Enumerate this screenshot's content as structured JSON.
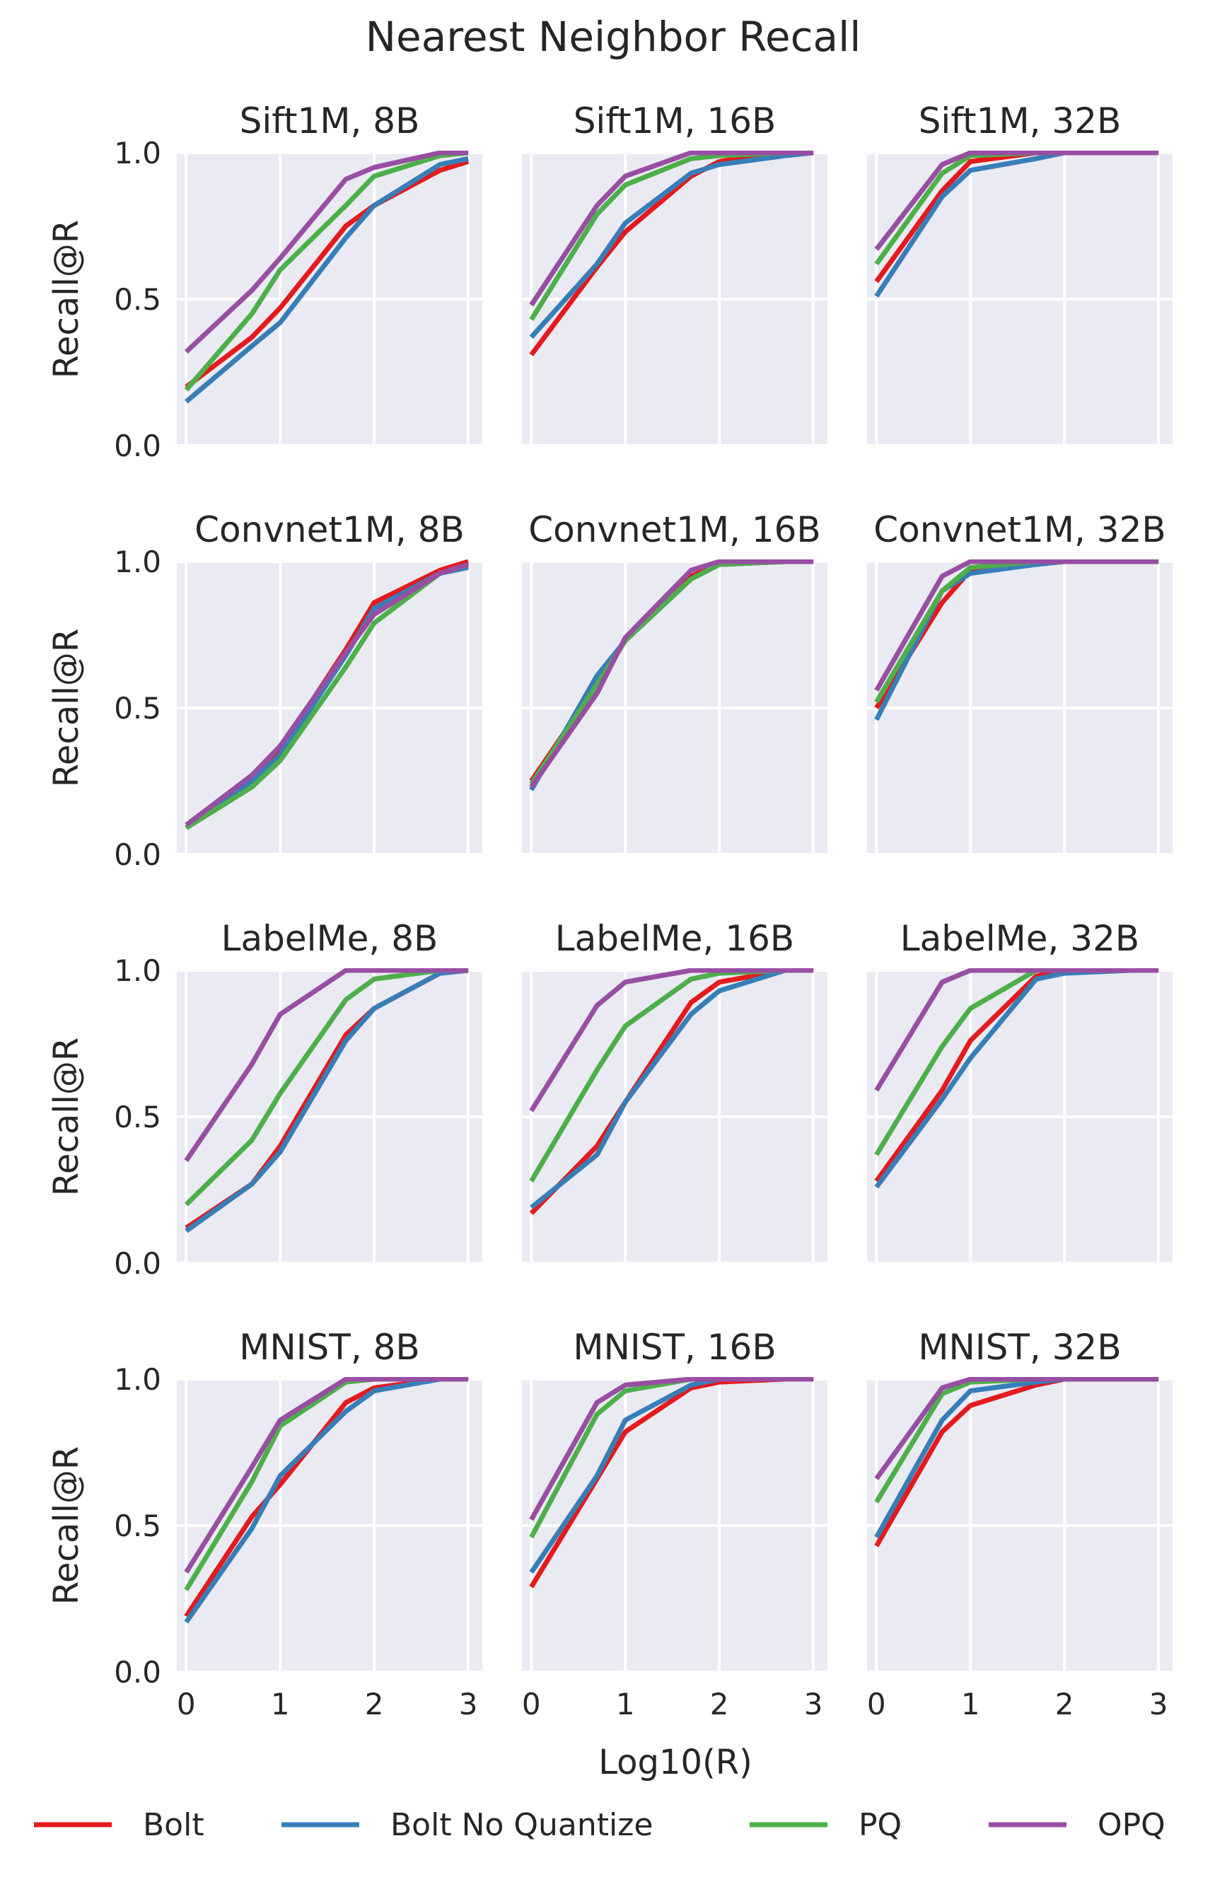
{
  "figure_title": "Nearest Neighbor Recall",
  "colors": {
    "panel_bg": "#eaeaf2",
    "grid": "#ffffff",
    "text": "#262626"
  },
  "chart_data": {
    "type": "line",
    "title": "Nearest Neighbor Recall",
    "xlabel": "Log10(R)",
    "ylabel": "Recall@R",
    "x": [
      0,
      0.699,
      1,
      1.699,
      2,
      2.699,
      3
    ],
    "xlim": [
      -0.1,
      3.15
    ],
    "ylim": [
      0,
      1
    ],
    "xticks": [
      "0",
      "1",
      "2",
      "3"
    ],
    "yticks": [
      "0.0",
      "0.5",
      "1.0"
    ],
    "grid": true,
    "legend": {
      "placement": "bottom",
      "entries": [
        {
          "name": "Bolt",
          "color": "#e41a1c"
        },
        {
          "name": "Bolt No Quantize",
          "color": "#377eb8"
        },
        {
          "name": "PQ",
          "color": "#4daf4a"
        },
        {
          "name": "OPQ",
          "color": "#984ea3"
        }
      ]
    },
    "panels": [
      {
        "title": "Sift1M, 8B",
        "series": [
          {
            "name": "Bolt",
            "values": [
              0.2,
              0.37,
              0.47,
              0.75,
              0.82,
              0.94,
              0.97
            ]
          },
          {
            "name": "Bolt No Quantize",
            "values": [
              0.15,
              0.34,
              0.42,
              0.71,
              0.82,
              0.96,
              0.98
            ]
          },
          {
            "name": "PQ",
            "values": [
              0.19,
              0.45,
              0.6,
              0.82,
              0.92,
              0.99,
              1.0
            ]
          },
          {
            "name": "OPQ",
            "values": [
              0.32,
              0.53,
              0.64,
              0.91,
              0.95,
              1.0,
              1.0
            ]
          }
        ]
      },
      {
        "title": "Sift1M, 16B",
        "series": [
          {
            "name": "Bolt",
            "values": [
              0.31,
              0.61,
              0.73,
              0.92,
              0.97,
              1.0,
              1.0
            ]
          },
          {
            "name": "Bolt No Quantize",
            "values": [
              0.37,
              0.62,
              0.76,
              0.93,
              0.96,
              0.99,
              1.0
            ]
          },
          {
            "name": "PQ",
            "values": [
              0.43,
              0.79,
              0.89,
              0.98,
              0.99,
              1.0,
              1.0
            ]
          },
          {
            "name": "OPQ",
            "values": [
              0.48,
              0.82,
              0.92,
              1.0,
              1.0,
              1.0,
              1.0
            ]
          }
        ]
      },
      {
        "title": "Sift1M, 32B",
        "series": [
          {
            "name": "Bolt",
            "values": [
              0.56,
              0.87,
              0.97,
              1.0,
              1.0,
              1.0,
              1.0
            ]
          },
          {
            "name": "Bolt No Quantize",
            "values": [
              0.51,
              0.85,
              0.94,
              0.98,
              1.0,
              1.0,
              1.0
            ]
          },
          {
            "name": "PQ",
            "values": [
              0.62,
              0.93,
              0.99,
              1.0,
              1.0,
              1.0,
              1.0
            ]
          },
          {
            "name": "OPQ",
            "values": [
              0.67,
              0.96,
              1.0,
              1.0,
              1.0,
              1.0,
              1.0
            ]
          }
        ]
      },
      {
        "title": "Convnet1M, 8B",
        "series": [
          {
            "name": "Bolt",
            "values": [
              0.09,
              0.26,
              0.36,
              0.7,
              0.86,
              0.97,
              1.0
            ]
          },
          {
            "name": "Bolt No Quantize",
            "values": [
              0.1,
              0.25,
              0.34,
              0.68,
              0.84,
              0.96,
              0.98
            ]
          },
          {
            "name": "PQ",
            "values": [
              0.09,
              0.23,
              0.32,
              0.64,
              0.79,
              0.96,
              0.99
            ]
          },
          {
            "name": "OPQ",
            "values": [
              0.1,
              0.27,
              0.37,
              0.69,
              0.82,
              0.96,
              0.99
            ]
          }
        ]
      },
      {
        "title": "Convnet1M, 16B",
        "series": [
          {
            "name": "Bolt",
            "values": [
              0.25,
              0.58,
              0.73,
              0.95,
              0.99,
              1.0,
              1.0
            ]
          },
          {
            "name": "Bolt No Quantize",
            "values": [
              0.22,
              0.61,
              0.73,
              0.94,
              0.99,
              1.0,
              1.0
            ]
          },
          {
            "name": "PQ",
            "values": [
              0.24,
              0.58,
              0.73,
              0.94,
              0.99,
              1.0,
              1.0
            ]
          },
          {
            "name": "OPQ",
            "values": [
              0.23,
              0.55,
              0.74,
              0.97,
              1.0,
              1.0,
              1.0
            ]
          }
        ]
      },
      {
        "title": "Convnet1M, 32B",
        "series": [
          {
            "name": "Bolt",
            "values": [
              0.5,
              0.86,
              0.97,
              1.0,
              1.0,
              1.0,
              1.0
            ]
          },
          {
            "name": "Bolt No Quantize",
            "values": [
              0.46,
              0.9,
              0.96,
              0.99,
              1.0,
              1.0,
              1.0
            ]
          },
          {
            "name": "PQ",
            "values": [
              0.52,
              0.9,
              0.98,
              1.0,
              1.0,
              1.0,
              1.0
            ]
          },
          {
            "name": "OPQ",
            "values": [
              0.56,
              0.95,
              1.0,
              1.0,
              1.0,
              1.0,
              1.0
            ]
          }
        ]
      },
      {
        "title": "LabelMe, 8B",
        "series": [
          {
            "name": "Bolt",
            "values": [
              0.12,
              0.27,
              0.4,
              0.78,
              0.87,
              0.99,
              1.0
            ]
          },
          {
            "name": "Bolt No Quantize",
            "values": [
              0.11,
              0.27,
              0.38,
              0.76,
              0.87,
              0.99,
              1.0
            ]
          },
          {
            "name": "PQ",
            "values": [
              0.2,
              0.42,
              0.58,
              0.9,
              0.97,
              1.0,
              1.0
            ]
          },
          {
            "name": "OPQ",
            "values": [
              0.35,
              0.68,
              0.85,
              1.0,
              1.0,
              1.0,
              1.0
            ]
          }
        ]
      },
      {
        "title": "LabelMe, 16B",
        "series": [
          {
            "name": "Bolt",
            "values": [
              0.17,
              0.4,
              0.55,
              0.89,
              0.96,
              1.0,
              1.0
            ]
          },
          {
            "name": "Bolt No Quantize",
            "values": [
              0.19,
              0.37,
              0.55,
              0.85,
              0.93,
              1.0,
              1.0
            ]
          },
          {
            "name": "PQ",
            "values": [
              0.28,
              0.66,
              0.81,
              0.97,
              0.99,
              1.0,
              1.0
            ]
          },
          {
            "name": "OPQ",
            "values": [
              0.52,
              0.88,
              0.96,
              1.0,
              1.0,
              1.0,
              1.0
            ]
          }
        ]
      },
      {
        "title": "LabelMe, 32B",
        "series": [
          {
            "name": "Bolt",
            "values": [
              0.28,
              0.59,
              0.76,
              0.98,
              1.0,
              1.0,
              1.0
            ]
          },
          {
            "name": "Bolt No Quantize",
            "values": [
              0.26,
              0.56,
              0.7,
              0.97,
              0.99,
              1.0,
              1.0
            ]
          },
          {
            "name": "PQ",
            "values": [
              0.37,
              0.74,
              0.87,
              1.0,
              1.0,
              1.0,
              1.0
            ]
          },
          {
            "name": "OPQ",
            "values": [
              0.59,
              0.96,
              1.0,
              1.0,
              1.0,
              1.0,
              1.0
            ]
          }
        ]
      },
      {
        "title": "MNIST, 8B",
        "series": [
          {
            "name": "Bolt",
            "values": [
              0.19,
              0.53,
              0.64,
              0.92,
              0.97,
              1.0,
              1.0
            ]
          },
          {
            "name": "Bolt No Quantize",
            "values": [
              0.17,
              0.49,
              0.67,
              0.89,
              0.96,
              1.0,
              1.0
            ]
          },
          {
            "name": "PQ",
            "values": [
              0.28,
              0.65,
              0.84,
              0.99,
              1.0,
              1.0,
              1.0
            ]
          },
          {
            "name": "OPQ",
            "values": [
              0.34,
              0.7,
              0.86,
              1.0,
              1.0,
              1.0,
              1.0
            ]
          }
        ]
      },
      {
        "title": "MNIST, 16B",
        "series": [
          {
            "name": "Bolt",
            "values": [
              0.29,
              0.66,
              0.82,
              0.97,
              0.99,
              1.0,
              1.0
            ]
          },
          {
            "name": "Bolt No Quantize",
            "values": [
              0.34,
              0.67,
              0.86,
              0.98,
              1.0,
              1.0,
              1.0
            ]
          },
          {
            "name": "PQ",
            "values": [
              0.46,
              0.88,
              0.96,
              1.0,
              1.0,
              1.0,
              1.0
            ]
          },
          {
            "name": "OPQ",
            "values": [
              0.52,
              0.92,
              0.98,
              1.0,
              1.0,
              1.0,
              1.0
            ]
          }
        ]
      },
      {
        "title": "MNIST, 32B",
        "series": [
          {
            "name": "Bolt",
            "values": [
              0.43,
              0.82,
              0.91,
              0.98,
              1.0,
              1.0,
              1.0
            ]
          },
          {
            "name": "Bolt No Quantize",
            "values": [
              0.46,
              0.86,
              0.96,
              0.99,
              1.0,
              1.0,
              1.0
            ]
          },
          {
            "name": "PQ",
            "values": [
              0.58,
              0.95,
              0.99,
              1.0,
              1.0,
              1.0,
              1.0
            ]
          },
          {
            "name": "OPQ",
            "values": [
              0.66,
              0.97,
              1.0,
              1.0,
              1.0,
              1.0,
              1.0
            ]
          }
        ]
      }
    ]
  }
}
